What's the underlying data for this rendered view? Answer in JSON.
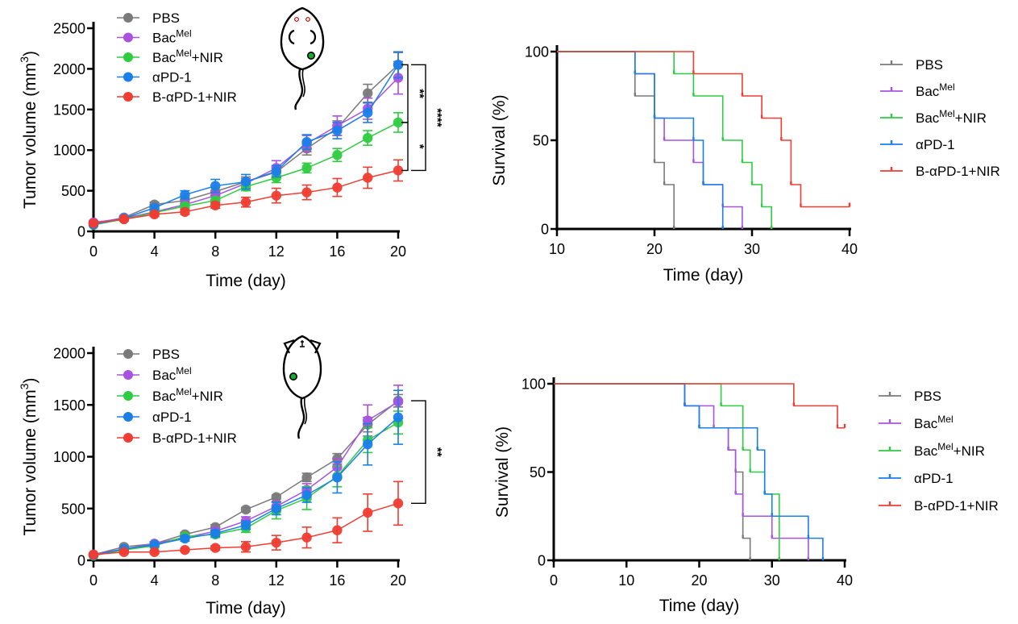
{
  "figure": {
    "description": "Tumor growth curves and Kaplan-Meier survival curves for two tumor models",
    "colors": {
      "PBS": "#7a7a7a",
      "BacMel": "#a952e0",
      "BacMelNIR": "#2ecc40",
      "aPD1": "#1a7fe8",
      "BaPD1NIR": "#f03c32",
      "mouse_tumor": "#1aaa2a",
      "axis": "#000000"
    }
  },
  "chart_data": [
    {
      "id": "tumor-growth-top",
      "type": "line",
      "title": "",
      "xlabel": "Time (day)",
      "ylabel": "Tumor volume (mm",
      "ylabel_superscript": "3",
      "ylabel_suffix": ")",
      "xlim": [
        0,
        20
      ],
      "ylim": [
        0,
        2500
      ],
      "xticks": [
        "0",
        "4",
        "8",
        "12",
        "16",
        "20"
      ],
      "yticks": [
        "0",
        "500",
        "1000",
        "1500",
        "2000",
        "2500"
      ],
      "xtick_values": [
        0,
        4,
        8,
        12,
        16,
        20
      ],
      "ytick_values": [
        0,
        500,
        1000,
        1500,
        2000,
        2500
      ],
      "grid": false,
      "legend_position": "top-left",
      "x": [
        0,
        2,
        4,
        6,
        8,
        10,
        12,
        14,
        16,
        18,
        20
      ],
      "series": [
        {
          "key": "PBS",
          "name": "PBS",
          "name_base": "PBS",
          "name_sup": "",
          "name_suffix": "",
          "values": [
            95,
            170,
            330,
            380,
            490,
            610,
            730,
            1020,
            1270,
            1700,
            2050
          ],
          "errors": [
            20,
            25,
            30,
            40,
            50,
            60,
            70,
            80,
            90,
            110,
            150
          ]
        },
        {
          "key": "BacMel",
          "name": "BacMel",
          "name_base": "Bac",
          "name_sup": "Mel",
          "name_suffix": "",
          "values": [
            110,
            160,
            240,
            330,
            440,
            590,
            780,
            1080,
            1300,
            1510,
            1890
          ],
          "errors": [
            20,
            25,
            30,
            40,
            50,
            60,
            90,
            100,
            120,
            130,
            200
          ]
        },
        {
          "key": "BacMelNIR",
          "name": "BacMel+NIR",
          "name_base": "Bac",
          "name_sup": "Mel",
          "name_suffix": "+NIR",
          "values": [
            80,
            150,
            230,
            310,
            380,
            550,
            660,
            780,
            940,
            1150,
            1340
          ],
          "errors": [
            15,
            20,
            25,
            30,
            40,
            50,
            60,
            60,
            80,
            90,
            120
          ]
        },
        {
          "key": "aPD1",
          "name": "αPD-1",
          "name_base": "αPD-1",
          "name_sup": "",
          "name_suffix": "",
          "values": [
            85,
            160,
            290,
            450,
            560,
            610,
            740,
            1100,
            1240,
            1460,
            2050
          ],
          "errors": [
            15,
            20,
            30,
            50,
            80,
            90,
            70,
            90,
            100,
            120,
            160
          ]
        },
        {
          "key": "BaPD1NIR",
          "name": "B-αPD-1+NIR",
          "name_base": "B-αPD-1+NIR",
          "name_sup": "",
          "name_suffix": "",
          "values": [
            100,
            150,
            210,
            240,
            320,
            360,
            440,
            480,
            540,
            660,
            750
          ],
          "errors": [
            15,
            20,
            25,
            30,
            35,
            60,
            90,
            90,
            110,
            130,
            130
          ]
        }
      ],
      "significance": [
        {
          "label": "**",
          "between": [
            "aPD1",
            "BacMelNIR"
          ]
        },
        {
          "label": "****",
          "between": [
            "aPD1",
            "BaPD1NIR"
          ]
        },
        {
          "label": "*",
          "between": [
            "BacMelNIR",
            "BaPD1NIR"
          ]
        }
      ]
    },
    {
      "id": "survival-top",
      "type": "line",
      "subtype": "kaplan-meier",
      "title": "",
      "xlabel": "Time (day)",
      "ylabel": "Survival (%)",
      "xlim": [
        10,
        40
      ],
      "ylim": [
        0,
        100
      ],
      "xticks": [
        "10",
        "20",
        "30",
        "40"
      ],
      "yticks": [
        "0",
        "50",
        "100"
      ],
      "xtick_values": [
        10,
        20,
        30,
        40
      ],
      "ytick_values": [
        0,
        50,
        100
      ],
      "grid": false,
      "legend_position": "right",
      "series": [
        {
          "key": "PBS",
          "name": "PBS",
          "name_base": "PBS",
          "name_sup": "",
          "name_suffix": "",
          "steps": [
            [
              10,
              100
            ],
            [
              18,
              75
            ],
            [
              20,
              37.5
            ],
            [
              21,
              25
            ],
            [
              22,
              0
            ]
          ]
        },
        {
          "key": "BacMel",
          "name": "BacMel",
          "name_base": "Bac",
          "name_sup": "Mel",
          "name_suffix": "",
          "steps": [
            [
              10,
              100
            ],
            [
              18,
              87.5
            ],
            [
              20,
              62.5
            ],
            [
              21,
              50
            ],
            [
              24,
              37.5
            ],
            [
              25,
              25
            ],
            [
              27,
              12.5
            ],
            [
              29,
              0
            ]
          ]
        },
        {
          "key": "BacMelNIR",
          "name": "BacMel+NIR",
          "name_base": "Bac",
          "name_sup": "Mel",
          "name_suffix": "+NIR",
          "steps": [
            [
              10,
              100
            ],
            [
              22,
              87.5
            ],
            [
              24,
              75
            ],
            [
              27,
              50
            ],
            [
              29,
              37.5
            ],
            [
              30,
              25
            ],
            [
              31,
              12.5
            ],
            [
              32,
              0
            ]
          ]
        },
        {
          "key": "aPD1",
          "name": "αPD-1",
          "name_base": "αPD-1",
          "name_sup": "",
          "name_suffix": "",
          "steps": [
            [
              10,
              100
            ],
            [
              18,
              87.5
            ],
            [
              20,
              62.5
            ],
            [
              24,
              50
            ],
            [
              25,
              25
            ],
            [
              27,
              0
            ]
          ]
        },
        {
          "key": "BaPD1NIR",
          "name": "B-αPD-1+NIR",
          "name_base": "B-αPD-1+NIR",
          "name_sup": "",
          "name_suffix": "",
          "steps": [
            [
              10,
              100
            ],
            [
              24,
              87.5
            ],
            [
              29,
              75
            ],
            [
              31,
              62.5
            ],
            [
              33,
              50
            ],
            [
              34,
              25
            ],
            [
              35,
              12.5
            ]
          ],
          "end": 40
        }
      ]
    },
    {
      "id": "tumor-growth-bottom",
      "type": "line",
      "title": "",
      "xlabel": "Time (day)",
      "ylabel": "Tumor volume (mm",
      "ylabel_superscript": "3",
      "ylabel_suffix": ")",
      "xlim": [
        0,
        20
      ],
      "ylim": [
        0,
        2000
      ],
      "xticks": [
        "0",
        "4",
        "8",
        "12",
        "16",
        "20"
      ],
      "yticks": [
        "0",
        "500",
        "1000",
        "1500",
        "2000"
      ],
      "xtick_values": [
        0,
        4,
        8,
        12,
        16,
        20
      ],
      "ytick_values": [
        0,
        500,
        1000,
        1500,
        2000
      ],
      "grid": false,
      "legend_position": "top-left",
      "x": [
        0,
        2,
        4,
        6,
        8,
        10,
        12,
        14,
        16,
        18,
        20
      ],
      "series": [
        {
          "key": "PBS",
          "name": "PBS",
          "name_base": "PBS",
          "name_sup": "",
          "name_suffix": "",
          "values": [
            55,
            130,
            160,
            250,
            320,
            490,
            610,
            800,
            980,
            1310,
            1540
          ],
          "errors": [
            10,
            15,
            20,
            20,
            25,
            20,
            20,
            40,
            50,
            70,
            60
          ]
        },
        {
          "key": "BacMel",
          "name": "BacMel",
          "name_base": "Bac",
          "name_sup": "Mel",
          "name_suffix": "",
          "values": [
            55,
            110,
            160,
            220,
            280,
            380,
            520,
            680,
            900,
            1350,
            1530
          ],
          "errors": [
            10,
            15,
            20,
            20,
            30,
            40,
            50,
            60,
            80,
            150,
            160
          ]
        },
        {
          "key": "BacMelNIR",
          "name": "BacMel+NIR",
          "name_base": "Bac",
          "name_sup": "Mel",
          "name_suffix": "+NIR",
          "values": [
            45,
            100,
            140,
            230,
            250,
            310,
            480,
            600,
            810,
            1160,
            1330
          ],
          "errors": [
            10,
            15,
            20,
            20,
            30,
            40,
            80,
            110,
            100,
            120,
            110
          ]
        },
        {
          "key": "aPD1",
          "name": "αPD-1",
          "name_base": "αPD-1",
          "name_sup": "",
          "name_suffix": "",
          "values": [
            50,
            110,
            150,
            210,
            260,
            340,
            500,
            630,
            800,
            1120,
            1380
          ],
          "errors": [
            10,
            15,
            20,
            25,
            30,
            40,
            60,
            70,
            150,
            200,
            260
          ]
        },
        {
          "key": "BaPD1NIR",
          "name": "B-αPD-1+NIR",
          "name_base": "B-αPD-1+NIR",
          "name_sup": "",
          "name_suffix": "",
          "values": [
            55,
            80,
            80,
            100,
            120,
            130,
            170,
            220,
            290,
            460,
            550
          ],
          "errors": [
            10,
            15,
            15,
            15,
            20,
            50,
            70,
            100,
            120,
            180,
            210
          ]
        }
      ],
      "significance": [
        {
          "label": "**",
          "between": [
            "PBS",
            "BaPD1NIR"
          ]
        }
      ]
    },
    {
      "id": "survival-bottom",
      "type": "line",
      "subtype": "kaplan-meier",
      "title": "",
      "xlabel": "Time (day)",
      "ylabel": "Survival (%)",
      "xlim": [
        0,
        40
      ],
      "ylim": [
        0,
        100
      ],
      "xticks": [
        "0",
        "10",
        "20",
        "30",
        "40"
      ],
      "yticks": [
        "0",
        "50",
        "100"
      ],
      "xtick_values": [
        0,
        10,
        20,
        30,
        40
      ],
      "ytick_values": [
        0,
        50,
        100
      ],
      "grid": false,
      "legend_position": "right",
      "series": [
        {
          "key": "PBS",
          "name": "PBS",
          "name_base": "PBS",
          "name_sup": "",
          "name_suffix": "",
          "steps": [
            [
              0,
              100
            ],
            [
              18,
              87.5
            ],
            [
              20,
              75
            ],
            [
              24,
              62.5
            ],
            [
              25,
              50
            ],
            [
              26,
              12.5
            ],
            [
              27,
              0
            ]
          ]
        },
        {
          "key": "BacMel",
          "name": "BacMel",
          "name_base": "Bac",
          "name_sup": "Mel",
          "name_suffix": "",
          "steps": [
            [
              0,
              100
            ],
            [
              18,
              87.5
            ],
            [
              22,
              75
            ],
            [
              24,
              62.5
            ],
            [
              25,
              37.5
            ],
            [
              26,
              25
            ],
            [
              30,
              12.5
            ],
            [
              35,
              0
            ]
          ]
        },
        {
          "key": "BacMelNIR",
          "name": "BacMel+NIR",
          "name_base": "Bac",
          "name_sup": "Mel",
          "name_suffix": "+NIR",
          "steps": [
            [
              0,
              100
            ],
            [
              23,
              87.5
            ],
            [
              26,
              62.5
            ],
            [
              27,
              50
            ],
            [
              29,
              37.5
            ],
            [
              31,
              0
            ]
          ]
        },
        {
          "key": "aPD1",
          "name": "αPD-1",
          "name_base": "αPD-1",
          "name_sup": "",
          "name_suffix": "",
          "steps": [
            [
              0,
              100
            ],
            [
              18,
              87.5
            ],
            [
              20,
              75
            ],
            [
              28,
              62.5
            ],
            [
              29,
              37.5
            ],
            [
              30,
              25
            ],
            [
              35,
              12.5
            ],
            [
              37,
              0
            ]
          ]
        },
        {
          "key": "BaPD1NIR",
          "name": "B-αPD-1+NIR",
          "name_base": "B-αPD-1+NIR",
          "name_sup": "",
          "name_suffix": "",
          "steps": [
            [
              0,
              100
            ],
            [
              33,
              87.5
            ],
            [
              39,
              75
            ]
          ],
          "end": 40
        }
      ]
    }
  ]
}
